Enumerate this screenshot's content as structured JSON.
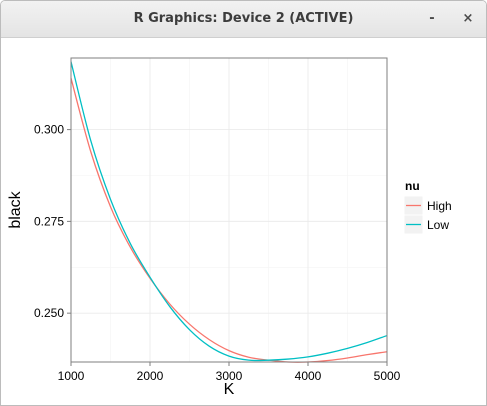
{
  "window": {
    "title": "R Graphics: Device 2 (ACTIVE)",
    "minimize_label": "-",
    "close_label": "×"
  },
  "colors": {
    "high": "#F8766D",
    "low": "#00BFC4",
    "grid": "#ebebeb",
    "panel_border": "#7f7f7f"
  },
  "chart_data": {
    "type": "line",
    "title": "",
    "xlabel": "K",
    "ylabel": "black",
    "xlim": [
      1000,
      5000
    ],
    "ylim": [
      0.2367,
      0.3195
    ],
    "x_ticks": [
      1000,
      2000,
      3000,
      4000,
      5000
    ],
    "x_tick_labels": [
      "1000",
      "2000",
      "3000",
      "4000",
      "5000"
    ],
    "y_ticks": [
      0.25,
      0.275,
      0.3
    ],
    "y_tick_labels": [
      "0.250",
      "0.275",
      "0.300"
    ],
    "grid": true,
    "legend": {
      "title": "nu",
      "position": "right",
      "entries": [
        "High",
        "Low"
      ]
    },
    "series": [
      {
        "name": "High",
        "color_key": "high",
        "x": [
          1000,
          1250,
          1500,
          1750,
          2000,
          2250,
          2500,
          2750,
          3000,
          3250,
          3500,
          3750,
          4000,
          4250,
          4500,
          4750,
          5000
        ],
        "y": [
          0.314,
          0.294,
          0.279,
          0.268,
          0.2595,
          0.2525,
          0.247,
          0.2428,
          0.2398,
          0.238,
          0.2372,
          0.2367,
          0.2367,
          0.2371,
          0.2378,
          0.2387,
          0.2395
        ]
      },
      {
        "name": "Low",
        "color_key": "low",
        "x": [
          1000,
          1250,
          1500,
          1750,
          2000,
          2250,
          2500,
          2750,
          3000,
          3250,
          3500,
          3750,
          4000,
          4250,
          4500,
          4750,
          5000
        ],
        "y": [
          0.3185,
          0.297,
          0.281,
          0.269,
          0.2598,
          0.2518,
          0.2455,
          0.241,
          0.2383,
          0.2372,
          0.2372,
          0.2375,
          0.2381,
          0.2391,
          0.2404,
          0.242,
          0.2439
        ]
      }
    ]
  }
}
